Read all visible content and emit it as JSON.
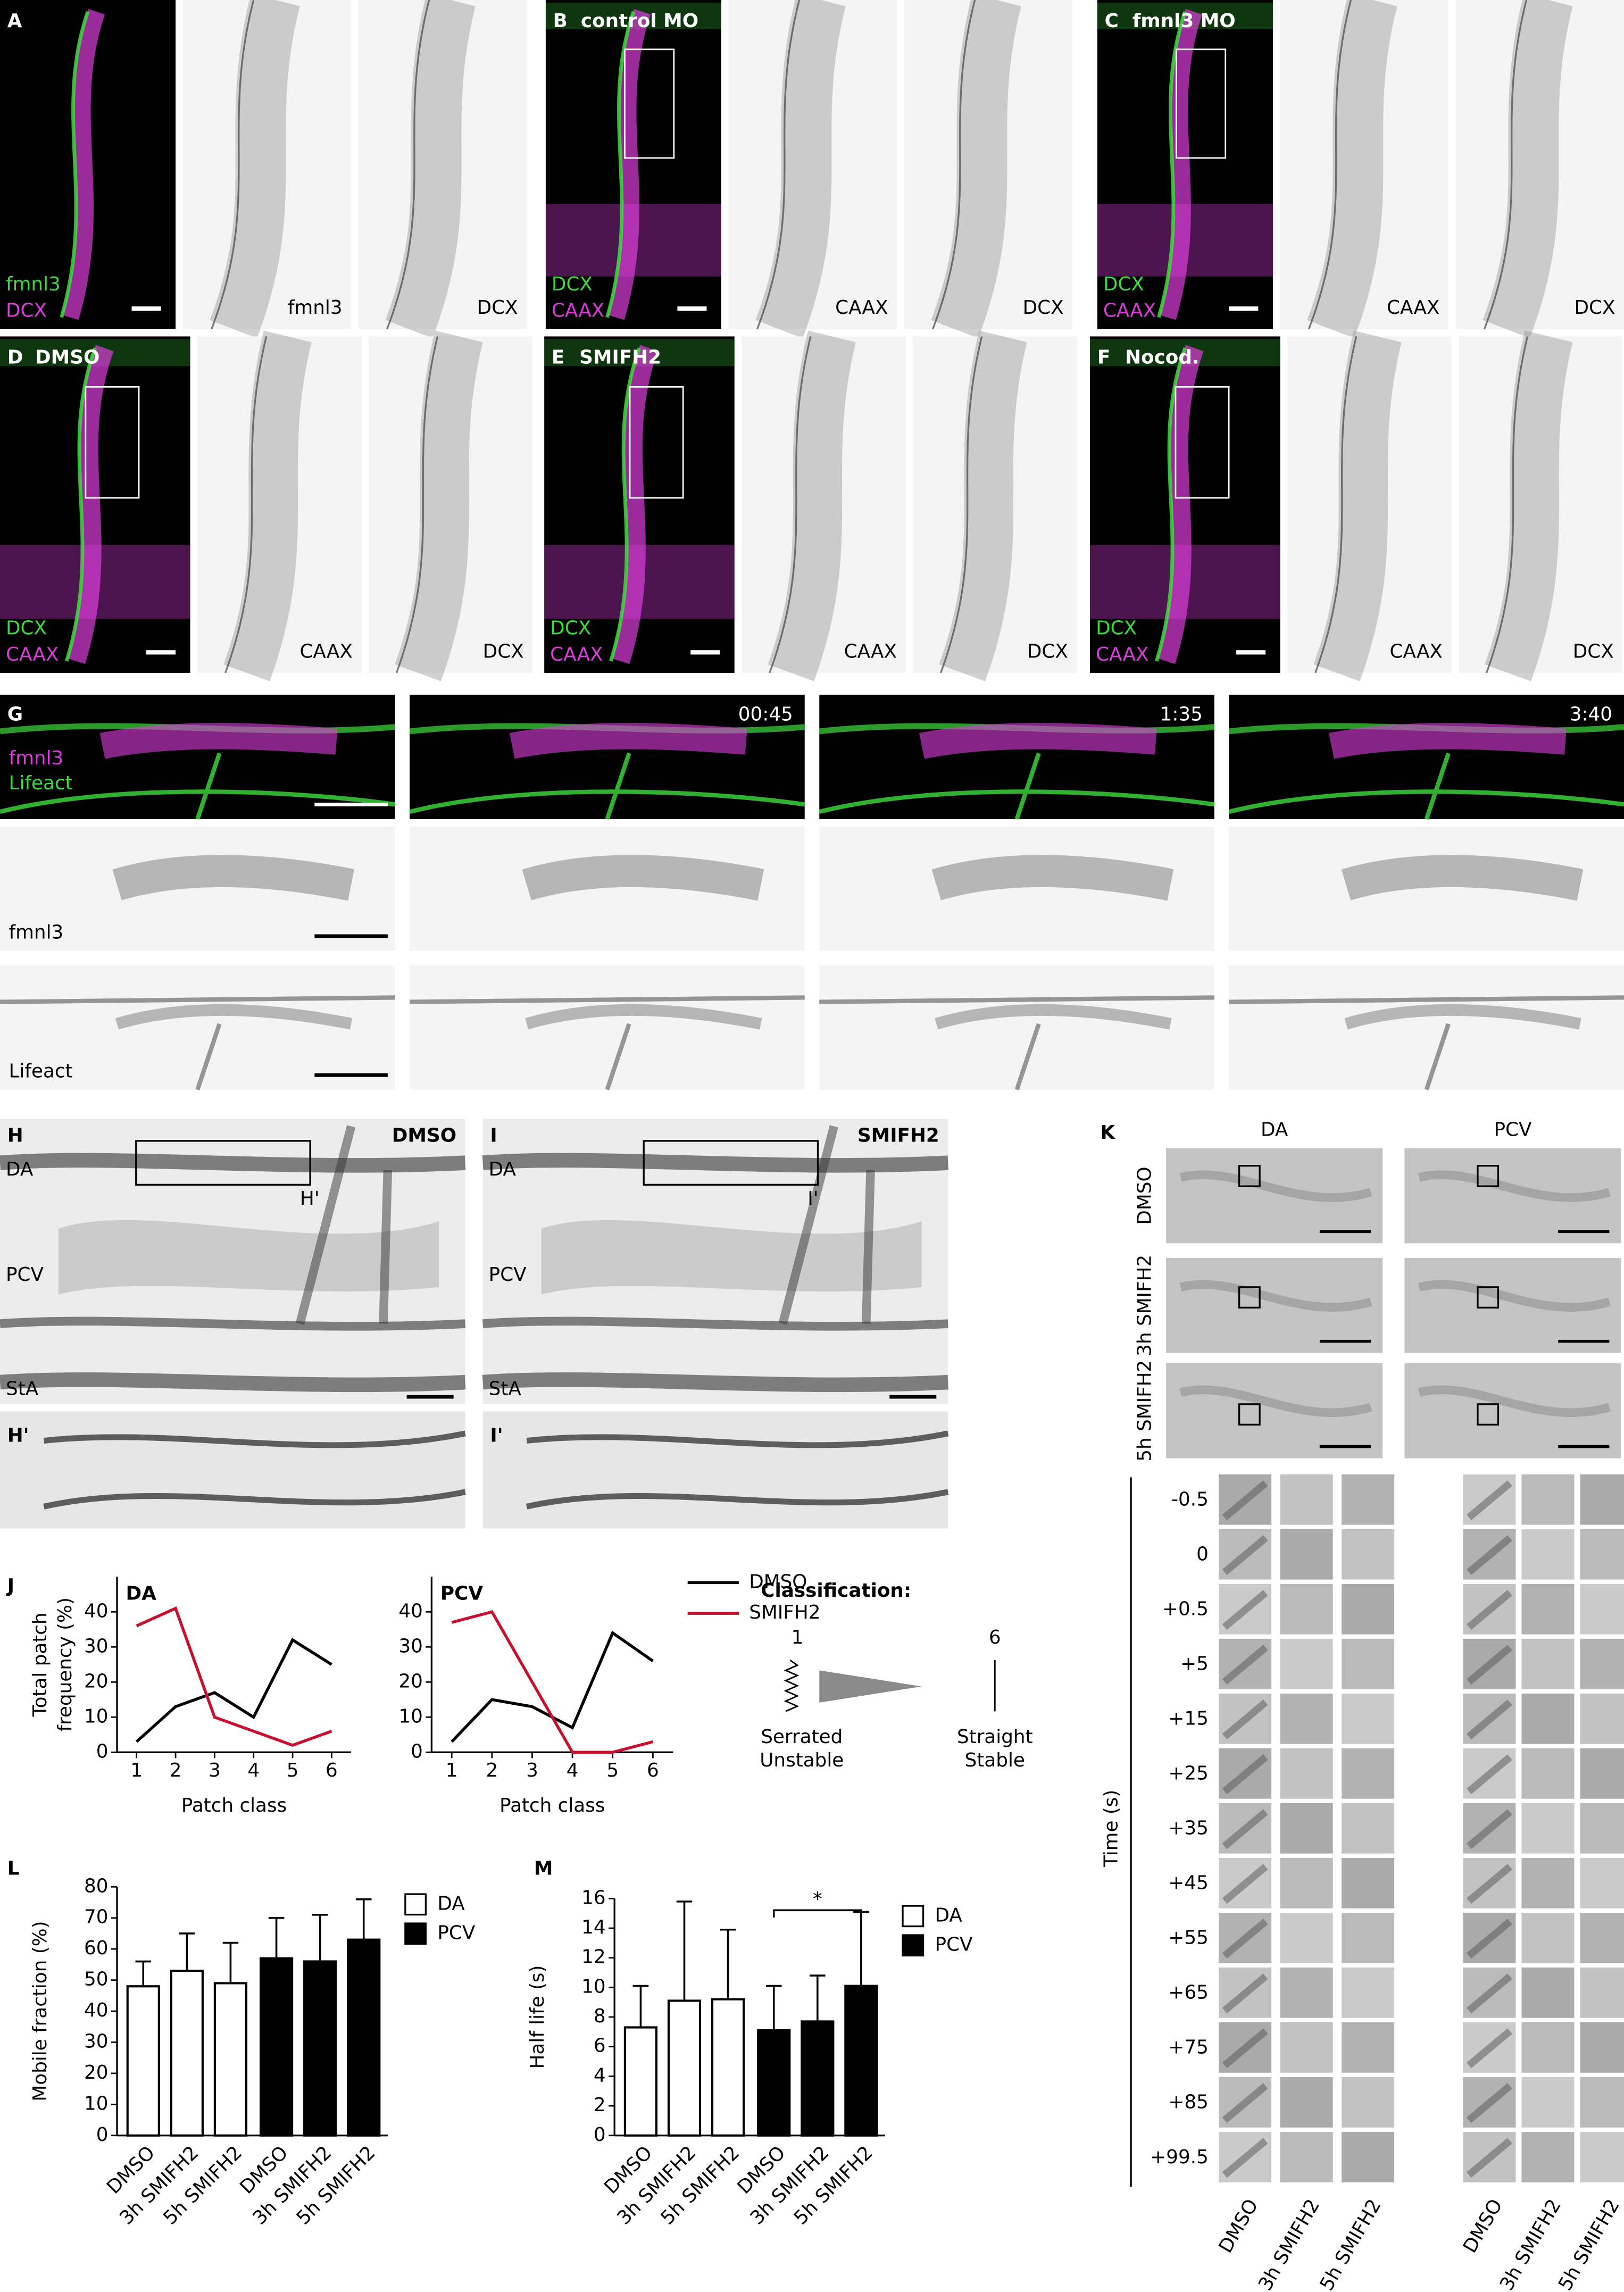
{
  "figure": {
    "panels": [
      {
        "letter": "A",
        "overlay": [
          {
            "text": "fmnl3",
            "color": "#3ddc3d"
          },
          {
            "text": "DCX",
            "color": "#dd3ddd"
          }
        ],
        "captions": [
          "fmnl3",
          "DCX"
        ]
      },
      {
        "letter": "B",
        "title": "control MO",
        "overlay": [
          {
            "text": "DCX",
            "color": "#3ddc3d"
          },
          {
            "text": "CAAX",
            "color": "#dd3ddd"
          }
        ],
        "captions": [
          "CAAX",
          "DCX"
        ]
      },
      {
        "letter": "C",
        "title": "fmnl3 MO",
        "overlay": [
          {
            "text": "DCX",
            "color": "#3ddc3d"
          },
          {
            "text": "CAAX",
            "color": "#dd3ddd"
          }
        ],
        "captions": [
          "CAAX",
          "DCX"
        ]
      },
      {
        "letter": "D",
        "title": "DMSO",
        "overlay": [
          {
            "text": "DCX",
            "color": "#3ddc3d"
          },
          {
            "text": "CAAX",
            "color": "#dd3ddd"
          }
        ],
        "captions": [
          "CAAX",
          "DCX"
        ]
      },
      {
        "letter": "E",
        "title": "SMIFH2",
        "overlay": [
          {
            "text": "DCX",
            "color": "#3ddc3d"
          },
          {
            "text": "CAAX",
            "color": "#dd3ddd"
          }
        ],
        "captions": [
          "CAAX",
          "DCX"
        ]
      },
      {
        "letter": "F",
        "title": "Nocod.",
        "overlay": [
          {
            "text": "DCX",
            "color": "#3ddc3d"
          },
          {
            "text": "CAAX",
            "color": "#dd3ddd"
          }
        ],
        "captions": [
          "CAAX",
          "DCX"
        ]
      }
    ],
    "G": {
      "letter": "G",
      "overlay": [
        {
          "text": "fmnl3",
          "color": "#dd3ddd"
        },
        {
          "text": "Lifeact",
          "color": "#3ddc3d"
        }
      ],
      "times": [
        "00:45",
        "1:35",
        "3:40"
      ],
      "row_labels": [
        "fmnl3",
        "Lifeact"
      ]
    },
    "H": {
      "letter": "H",
      "title": "DMSO",
      "vessels": [
        "DA",
        "PCV",
        "StA"
      ],
      "inset": "H'"
    },
    "I": {
      "letter": "I",
      "title": "SMIFH2",
      "vessels": [
        "DA",
        "PCV",
        "StA"
      ],
      "inset": "I'"
    },
    "K": {
      "letter": "K",
      "columns": [
        "DA",
        "PCV"
      ],
      "rows": [
        "DMSO",
        "3h SMIFH2",
        "5h SMIFH2"
      ],
      "times": [
        "-0.5",
        "0",
        "+0.5",
        "+5",
        "+15",
        "+25",
        "+35",
        "+45",
        "+55",
        "+65",
        "+75",
        "+85",
        "+99.5"
      ],
      "axis_label": "Time (s)"
    },
    "classification": {
      "title": "Classification:",
      "start": "1",
      "end": "6",
      "start_label": [
        "Serrated",
        "Unstable"
      ],
      "end_label": [
        "Straight",
        "Stable"
      ]
    }
  },
  "chart_data": [
    {
      "type": "line",
      "letter": "J",
      "title": "DA",
      "x": [
        1,
        2,
        3,
        4,
        5,
        6
      ],
      "xlim": [
        0.5,
        6.5
      ],
      "xticks": [
        1,
        2,
        3,
        4,
        5,
        6
      ],
      "ylim": [
        0,
        50
      ],
      "yticks": [
        0,
        10,
        20,
        30,
        40
      ],
      "xlabel": "Patch class",
      "ylabel": [
        "Total patch",
        "frequency (%)"
      ],
      "series": [
        {
          "name": "DMSO",
          "color": "#000000",
          "values": [
            3,
            13,
            17,
            10,
            32,
            25
          ]
        },
        {
          "name": "SMIFH2",
          "color": "#c8102e",
          "values": [
            36,
            41,
            10,
            6,
            2,
            6
          ]
        }
      ]
    },
    {
      "type": "line",
      "title": "PCV",
      "x": [
        1,
        2,
        3,
        4,
        5,
        6
      ],
      "xlim": [
        0.5,
        6.5
      ],
      "xticks": [
        1,
        2,
        3,
        4,
        5,
        6
      ],
      "ylim": [
        0,
        50
      ],
      "yticks": [
        0,
        10,
        20,
        30,
        40
      ],
      "xlabel": "Patch class",
      "legend": true,
      "series": [
        {
          "name": "DMSO",
          "color": "#000000",
          "values": [
            3,
            15,
            13,
            7,
            34,
            26
          ]
        },
        {
          "name": "SMIFH2",
          "color": "#c8102e",
          "values": [
            37,
            40,
            20,
            0,
            0,
            3
          ]
        }
      ]
    },
    {
      "type": "bar",
      "letter": "L",
      "categories": [
        "DMSO",
        "3h SMIFH2",
        "5h SMIFH2"
      ],
      "ylabel": "Mobile fraction (%)",
      "ylim": [
        0,
        80
      ],
      "yticks": [
        0,
        10,
        20,
        30,
        40,
        50,
        60,
        70,
        80
      ],
      "series": [
        {
          "name": "DA",
          "color": "#ffffff",
          "values": [
            48,
            53,
            49
          ],
          "errors": [
            8,
            12,
            13
          ]
        },
        {
          "name": "PCV",
          "color": "#000000",
          "values": [
            57,
            56,
            63
          ],
          "errors": [
            13,
            15,
            13
          ]
        }
      ]
    },
    {
      "type": "bar",
      "letter": "M",
      "categories": [
        "DMSO",
        "3h SMIFH2",
        "5h SMIFH2"
      ],
      "ylabel": "Half life (s)",
      "ylim": [
        0,
        16
      ],
      "yticks": [
        0,
        2,
        4,
        6,
        8,
        10,
        12,
        14,
        16
      ],
      "annotation": "*",
      "series": [
        {
          "name": "DA",
          "color": "#ffffff",
          "values": [
            7.3,
            9.1,
            9.2
          ],
          "errors": [
            2.8,
            6.7,
            4.7
          ]
        },
        {
          "name": "PCV",
          "color": "#000000",
          "values": [
            7.1,
            7.7,
            10.1
          ],
          "errors": [
            3,
            3.1,
            5
          ]
        }
      ]
    }
  ]
}
